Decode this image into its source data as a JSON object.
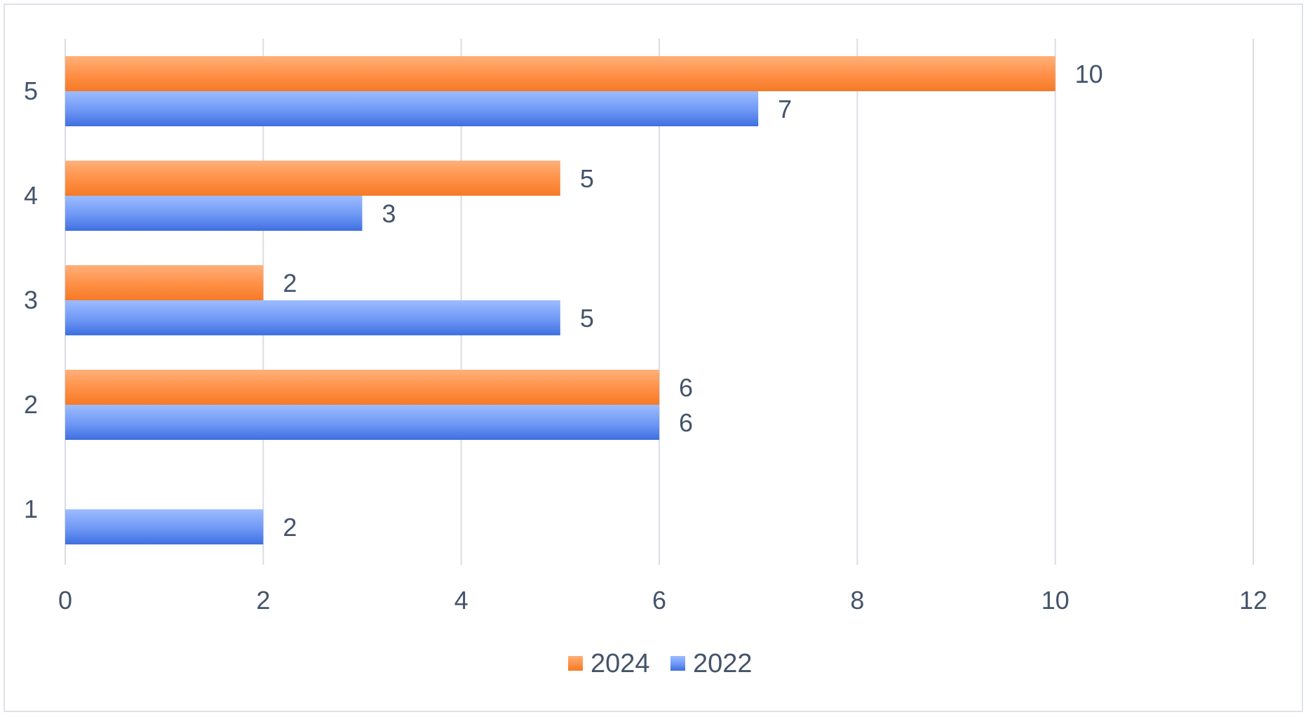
{
  "chart_data": {
    "type": "bar",
    "orientation": "horizontal",
    "categories": [
      "1",
      "2",
      "3",
      "4",
      "5"
    ],
    "series": [
      {
        "name": "2022",
        "values": [
          2,
          6,
          5,
          3,
          7
        ],
        "color": "#4f81f2"
      },
      {
        "name": "2024",
        "values": [
          null,
          6,
          2,
          5,
          10
        ],
        "color": "#ff8a3d"
      }
    ],
    "xlim": [
      0,
      12
    ],
    "x_ticks": [
      "0",
      "2",
      "4",
      "6",
      "8",
      "10",
      "12"
    ],
    "grid": "vertical",
    "legend_position": "bottom",
    "legend_order": [
      "2024",
      "2022"
    ],
    "data_labels": true
  }
}
